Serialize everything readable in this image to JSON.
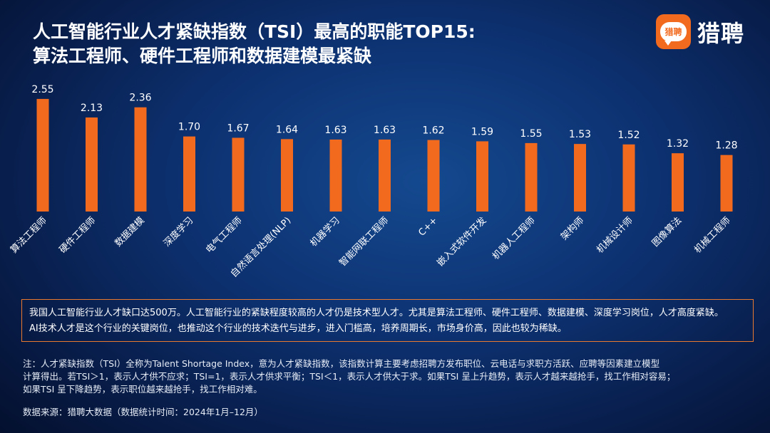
{
  "title": {
    "line1": "人工智能行业人才紧缺指数（TSI）最高的职能TOP15:",
    "line2": "算法工程师、硬件工程师和数据建模最紧缺"
  },
  "logo": {
    "badge_text": "猎聘",
    "brand_text": "猎聘"
  },
  "colors": {
    "bar": "#f26a1e",
    "note_border": "#e8792e",
    "logo": "#f26a1e"
  },
  "chart_data": {
    "type": "bar",
    "categories": [
      "算法工程师",
      "硬件工程师",
      "数据建模",
      "深度学习",
      "电气工程师",
      "自然语言处理(NLP)",
      "机器学习",
      "智能网联工程师",
      "C++",
      "嵌入式软件开发",
      "机器人工程师",
      "架构师",
      "机械设计师",
      "图像算法",
      "机械工程师"
    ],
    "values": [
      2.55,
      2.13,
      2.36,
      1.7,
      1.67,
      1.64,
      1.63,
      1.63,
      1.62,
      1.59,
      1.55,
      1.53,
      1.52,
      1.32,
      1.28
    ],
    "labels": [
      "2.55",
      "2.13",
      "2.36",
      "1.70",
      "1.67",
      "1.64",
      "1.63",
      "1.63",
      "1.62",
      "1.59",
      "1.55",
      "1.53",
      "1.52",
      "1.32",
      "1.28"
    ],
    "title": "",
    "xlabel": "",
    "ylabel": "",
    "ylim": [
      0,
      2.6
    ],
    "grid": false,
    "legend": "none"
  },
  "note_box": {
    "line1": "我国人工智能行业人才缺口达500万。人工智能行业的紧缺程度较高的人才仍是技术型人才。尤其是算法工程师、硬件工程师、数据建模、深度学习岗位，人才高度紧缺。",
    "line2": "AI技术人才是这个行业的关键岗位，也推动这个行业的技术迭代与进步，进入门槛高，培养周期长，市场身价高，因此也较为稀缺。"
  },
  "footnote": {
    "line1": "注：人才紧缺指数（TSI）全称为Talent Shortage Index，意为人才紧缺指数，该指数计算主要考虑招聘方发布职位、云电话与求职方活跃、应聘等因素建立模型",
    "line2": "计算得出。若TSI＞1，表示人才供不应求；TSI=1，表示人才供求平衡；TSI＜1，表示人才供大于求。如果TSI 呈上升趋势，表示人才越来越抢手，找工作相对容易；",
    "line3": "如果TSI 呈下降趋势，表示职位越来越抢手，找工作相对难。"
  },
  "source": "数据来源：猎聘大数据（数据统计时间：2024年1月–12月）"
}
